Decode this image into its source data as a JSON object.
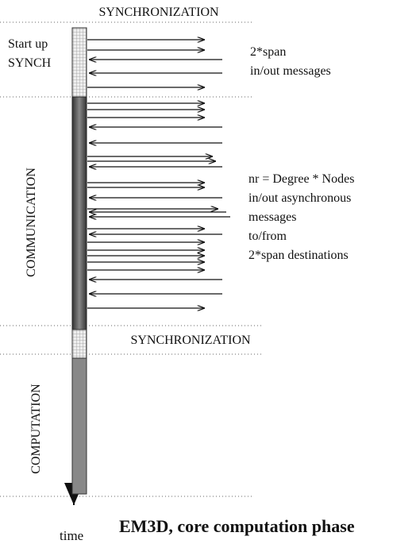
{
  "title": "EM3D, core computation phase",
  "time_label": "time",
  "phases": {
    "sync_top": "SYNCHRONIZATION",
    "startup": [
      "Start up",
      "SYNCH"
    ],
    "communication": "COMMUNICATION",
    "sync_mid": "SYNCHRONIZATION",
    "computation": "COMPUTATION"
  },
  "notes": {
    "startup": [
      "2*span",
      "in/out  messages"
    ],
    "communication": [
      "nr = Degree * Nodes",
      "in/out asynchronous",
      "messages",
      "to/from",
      "2*span destinations"
    ]
  }
}
